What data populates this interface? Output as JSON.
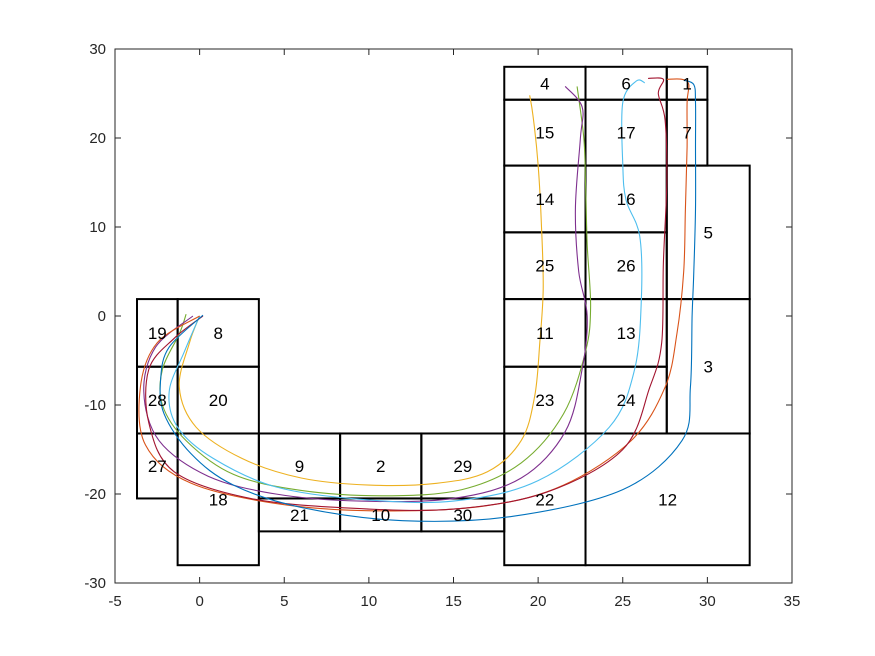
{
  "chart_data": {
    "type": "line",
    "title": "",
    "xlabel": "",
    "ylabel": "",
    "xlim": [
      -5,
      35
    ],
    "ylim": [
      -30,
      30
    ],
    "xticks": [
      -5,
      0,
      5,
      10,
      15,
      20,
      25,
      30,
      35
    ],
    "yticks": [
      -30,
      -20,
      -10,
      0,
      10,
      20,
      30
    ],
    "grid": false,
    "regions": [
      {
        "label": "19",
        "x0": -3.7,
        "x1": -1.3,
        "y0": -5.7,
        "y1": 1.9
      },
      {
        "label": "8",
        "x0": -1.3,
        "x1": 3.5,
        "y0": -5.7,
        "y1": 1.9
      },
      {
        "label": "28",
        "x0": -3.7,
        "x1": -1.3,
        "y0": -13.2,
        "y1": -5.7
      },
      {
        "label": "20",
        "x0": -1.3,
        "x1": 3.5,
        "y0": -13.2,
        "y1": -5.7
      },
      {
        "label": "27",
        "x0": -3.7,
        "x1": -1.3,
        "y0": -20.5,
        "y1": -13.2
      },
      {
        "label": "18",
        "x0": -1.3,
        "x1": 3.5,
        "y0": -28.0,
        "y1": -13.2
      },
      {
        "label": "9",
        "x0": 3.5,
        "x1": 8.3,
        "y0": -20.5,
        "y1": -13.2
      },
      {
        "label": "2",
        "x0": 8.3,
        "x1": 13.1,
        "y0": -20.5,
        "y1": -13.2
      },
      {
        "label": "29",
        "x0": 13.1,
        "x1": 18.0,
        "y0": -20.5,
        "y1": -13.2
      },
      {
        "label": "21",
        "x0": 3.5,
        "x1": 8.3,
        "y0": -24.2,
        "y1": -20.5
      },
      {
        "label": "10",
        "x0": 8.3,
        "x1": 13.1,
        "y0": -24.2,
        "y1": -20.5
      },
      {
        "label": "30",
        "x0": 13.1,
        "x1": 18.0,
        "y0": -24.2,
        "y1": -20.5
      },
      {
        "label": "22",
        "x0": 18.0,
        "x1": 22.8,
        "y0": -28.0,
        "y1": -13.2
      },
      {
        "label": "12",
        "x0": 22.8,
        "x1": 32.5,
        "y0": -28.0,
        "y1": -13.2
      },
      {
        "label": "23",
        "x0": 18.0,
        "x1": 22.8,
        "y0": -13.2,
        "y1": -5.7
      },
      {
        "label": "24",
        "x0": 22.8,
        "x1": 27.6,
        "y0": -13.2,
        "y1": -5.7
      },
      {
        "label": "11",
        "x0": 18.0,
        "x1": 22.8,
        "y0": -5.7,
        "y1": 1.9
      },
      {
        "label": "13",
        "x0": 22.8,
        "x1": 27.6,
        "y0": -5.7,
        "y1": 1.9
      },
      {
        "label": "3",
        "x0": 27.6,
        "x1": 32.5,
        "y0": -13.2,
        "y1": 1.9
      },
      {
        "label": "25",
        "x0": 18.0,
        "x1": 22.8,
        "y0": 1.9,
        "y1": 9.4
      },
      {
        "label": "26",
        "x0": 22.8,
        "x1": 27.6,
        "y0": 1.9,
        "y1": 9.4
      },
      {
        "label": "14",
        "x0": 18.0,
        "x1": 22.8,
        "y0": 9.4,
        "y1": 16.9
      },
      {
        "label": "16",
        "x0": 22.8,
        "x1": 27.6,
        "y0": 9.4,
        "y1": 16.9
      },
      {
        "label": "5",
        "x0": 27.6,
        "x1": 32.5,
        "y0": 1.9,
        "y1": 16.9
      },
      {
        "label": "15",
        "x0": 18.0,
        "x1": 22.8,
        "y0": 16.9,
        "y1": 24.3
      },
      {
        "label": "17",
        "x0": 22.8,
        "x1": 27.6,
        "y0": 16.9,
        "y1": 24.3
      },
      {
        "label": "7",
        "x0": 27.6,
        "x1": 30.0,
        "y0": 16.9,
        "y1": 24.3
      },
      {
        "label": "4",
        "x0": 18.0,
        "x1": 22.8,
        "y0": 24.3,
        "y1": 28.0
      },
      {
        "label": "6",
        "x0": 22.8,
        "x1": 27.6,
        "y0": 24.3,
        "y1": 28.0
      },
      {
        "label": "1",
        "x0": 27.6,
        "x1": 30.0,
        "y0": 24.3,
        "y1": 28.0
      }
    ],
    "series": [
      {
        "color": "#EDB120",
        "points": [
          [
            0,
            0
          ],
          [
            -0.6,
            -3
          ],
          [
            -1.2,
            -8
          ],
          [
            -0.2,
            -12.5
          ],
          [
            2.5,
            -16
          ],
          [
            6,
            -18.2
          ],
          [
            10,
            -19
          ],
          [
            14,
            -18.8
          ],
          [
            17,
            -17.5
          ],
          [
            19,
            -14
          ],
          [
            19.8,
            -9
          ],
          [
            20.1,
            -3
          ],
          [
            20.3,
            3
          ],
          [
            20.2,
            10
          ],
          [
            20,
            17
          ],
          [
            19.7,
            22.5
          ],
          [
            19.5,
            24.8
          ]
        ]
      },
      {
        "color": "#77AC30",
        "points": [
          [
            -0.8,
            0.2
          ],
          [
            -1.2,
            -2
          ],
          [
            -2.2,
            -6
          ],
          [
            -2.2,
            -10
          ],
          [
            -0.8,
            -14
          ],
          [
            2,
            -17.8
          ],
          [
            6,
            -19.6
          ],
          [
            11,
            -20.2
          ],
          [
            15.5,
            -19.5
          ],
          [
            19,
            -16.5
          ],
          [
            21.5,
            -11
          ],
          [
            22.8,
            -4
          ],
          [
            23.1,
            1
          ],
          [
            22.9,
            8
          ],
          [
            22.8,
            15
          ],
          [
            22.7,
            20
          ],
          [
            22.3,
            25.8
          ]
        ]
      },
      {
        "color": "#7E2F8E",
        "points": [
          [
            -0.4,
            0
          ],
          [
            -2.6,
            -3.5
          ],
          [
            -3.3,
            -8.5
          ],
          [
            -2.4,
            -14
          ],
          [
            0.5,
            -18
          ],
          [
            4.5,
            -20
          ],
          [
            9.5,
            -20.8
          ],
          [
            15,
            -20.5
          ],
          [
            19,
            -18.2
          ],
          [
            21.6,
            -13
          ],
          [
            22.6,
            -6
          ],
          [
            22.9,
            0
          ],
          [
            22.4,
            5
          ],
          [
            22.2,
            12
          ],
          [
            22.5,
            20
          ],
          [
            22.6,
            23.5
          ],
          [
            21.6,
            25.8
          ]
        ]
      },
      {
        "color": "#4DBEEE",
        "points": [
          [
            0,
            0
          ],
          [
            -0.9,
            -4
          ],
          [
            -1.8,
            -8.5
          ],
          [
            -1.3,
            -12.5
          ],
          [
            0.8,
            -16
          ],
          [
            4.5,
            -19.2
          ],
          [
            9.5,
            -20.6
          ],
          [
            15,
            -20.8
          ],
          [
            20,
            -18.5
          ],
          [
            24.2,
            -12.5
          ],
          [
            25.7,
            -6
          ],
          [
            26.1,
            2
          ],
          [
            26,
            9
          ],
          [
            25.2,
            13
          ],
          [
            25,
            17
          ],
          [
            25,
            24
          ],
          [
            25.8,
            26.4
          ],
          [
            26.3,
            26.2
          ]
        ]
      },
      {
        "color": "#D95319",
        "points": [
          [
            0,
            0
          ],
          [
            -2.5,
            -3
          ],
          [
            -3.5,
            -8
          ],
          [
            -3.2,
            -14.5
          ],
          [
            -0.5,
            -18.8
          ],
          [
            5,
            -21.2
          ],
          [
            11,
            -21.9
          ],
          [
            17,
            -21.3
          ],
          [
            21.5,
            -19
          ],
          [
            25.5,
            -14
          ],
          [
            27.5,
            -8
          ],
          [
            28.2,
            -2
          ],
          [
            28.6,
            5
          ],
          [
            28.7,
            12
          ],
          [
            28.8,
            19
          ],
          [
            28.8,
            24
          ],
          [
            28.9,
            26
          ],
          [
            28.5,
            26.6
          ],
          [
            27.6,
            26.6
          ]
        ]
      },
      {
        "color": "#A2142F",
        "points": [
          [
            0.2,
            0
          ],
          [
            -1.5,
            -2.5
          ],
          [
            -3,
            -6
          ],
          [
            -3,
            -12
          ],
          [
            -1.5,
            -17.5
          ],
          [
            3,
            -20.5
          ],
          [
            9,
            -21.6
          ],
          [
            15,
            -21.7
          ],
          [
            20.5,
            -19.8
          ],
          [
            25,
            -15
          ],
          [
            26.6,
            -8
          ],
          [
            27.3,
            -3
          ],
          [
            27.4,
            6
          ],
          [
            27.6,
            15
          ],
          [
            27.5,
            22
          ],
          [
            27.1,
            25
          ],
          [
            27.4,
            26.6
          ],
          [
            26.5,
            26.7
          ]
        ]
      },
      {
        "color": "#0072BD",
        "points": [
          [
            0.2,
            0.1
          ],
          [
            -1.8,
            -3.5
          ],
          [
            -2.3,
            -7
          ],
          [
            -2.1,
            -11
          ],
          [
            -0.5,
            -15.5
          ],
          [
            2,
            -19
          ],
          [
            6,
            -21.5
          ],
          [
            12,
            -23
          ],
          [
            18.5,
            -22.5
          ],
          [
            25,
            -19.5
          ],
          [
            28.5,
            -14
          ],
          [
            29,
            -8
          ],
          [
            29.1,
            0
          ],
          [
            29.2,
            5
          ],
          [
            29.3,
            12
          ],
          [
            29.3,
            19
          ],
          [
            29.3,
            24
          ],
          [
            29.2,
            26
          ],
          [
            28.6,
            26.5
          ]
        ]
      }
    ]
  }
}
